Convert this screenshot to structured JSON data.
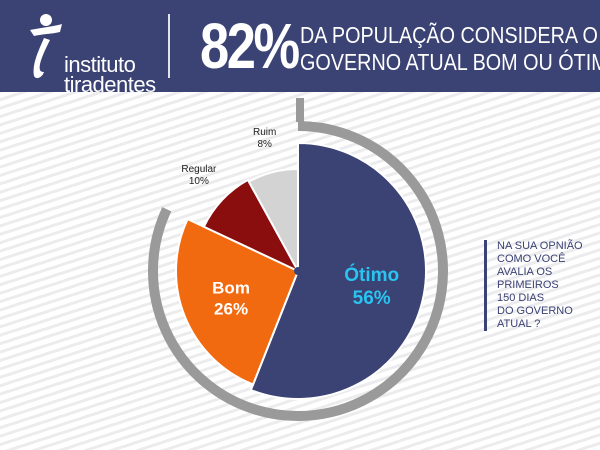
{
  "header": {
    "logo_line1": "instituto",
    "logo_line2": "tiradentes",
    "percentage": "82%",
    "headline_line1": "DA POPULAÇÃO CONSIDERA O",
    "headline_line2": "GOVERNO ATUAL BOM OU ÓTIMO"
  },
  "question": {
    "lines": [
      "NA SUA OPNIÃO",
      "COMO VOCÊ",
      "AVALIA OS",
      "PRIMEIROS",
      "150 DIAS",
      "DO GOVERNO",
      "ATUAL ?"
    ]
  },
  "colors": {
    "header_bg": "#3b4274",
    "otimo": "#3b4274",
    "bom": "#f26a10",
    "regular": "#8b0e0e",
    "ruim": "#d3d3d3",
    "otimo_label": "#29c4f0",
    "ring": "#9a9a9a"
  },
  "chart_data": {
    "type": "pie",
    "slices": [
      {
        "label": "Ótimo",
        "value_label": "56%",
        "value": 56
      },
      {
        "label": "Bom",
        "value_label": "26%",
        "value": 26
      },
      {
        "label": "Regular",
        "value_label": "10%",
        "value": 10
      },
      {
        "label": "Ruim",
        "value_label": "8%",
        "value": 8
      }
    ]
  }
}
